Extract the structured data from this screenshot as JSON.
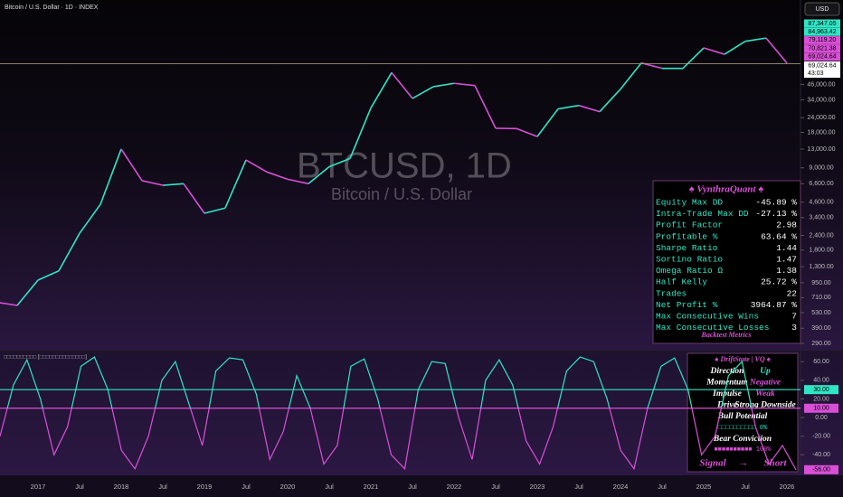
{
  "header": {
    "symbol_title": "Bitcoin / U.S. Dollar · 1D · INDEX",
    "currency": "USD",
    "watermark_symbol": "BTCUSD, 1D",
    "watermark_name": "Bitcoin / U.S. Dollar",
    "indicator_label": "□□□□□□□□□□ [□□□□□□□□□□□□□□]"
  },
  "price_labels": [
    {
      "text": "87,347.05",
      "color": "#2ee6c5"
    },
    {
      "text": "84,963.42",
      "color": "#2ee6c5"
    },
    {
      "text": "79,119.20",
      "color": "#d94fd6"
    },
    {
      "text": "70,821.38",
      "color": "#d94fd6"
    },
    {
      "text": "69,024.64",
      "color": "#d94fd6"
    }
  ],
  "last_price": {
    "value": 69024.64,
    "label": "69,024.64",
    "countdown": "43:03"
  },
  "chart_data": [
    {
      "type": "line",
      "log_scale": true,
      "categories": [
        null,
        null,
        "2017",
        null,
        "Jul",
        null,
        "2018",
        null,
        "Jul",
        null,
        "2019",
        null,
        "Jul",
        null,
        "2020",
        null,
        "Jul",
        null,
        "2021",
        null,
        "Jul",
        null,
        "2022",
        null,
        "Jul",
        null,
        "2023",
        null,
        "Jul",
        null,
        "2024",
        null,
        "Jul",
        null,
        "2025",
        null,
        "Jul",
        null,
        "2026"
      ],
      "values": [
        650,
        610,
        1000,
        1200,
        2500,
        4400,
        13000,
        7000,
        6400,
        6600,
        3700,
        4100,
        10500,
        8300,
        7200,
        6600,
        9200,
        10800,
        29000,
        58000,
        35000,
        44000,
        47000,
        45000,
        19500,
        19400,
        16600,
        28500,
        30500,
        27000,
        42000,
        70000,
        63000,
        63000,
        94000,
        83000,
        107000,
        114000,
        70000
      ],
      "colors": {
        "up": "#2ee6c5",
        "down": "#d94fd6"
      },
      "ylim": [
        252,
        240000
      ],
      "yticks": [
        {
          "value": 290,
          "label": "290.00"
        },
        {
          "value": 390,
          "label": "390.00"
        },
        {
          "value": 530,
          "label": "530.00"
        },
        {
          "value": 710,
          "label": "710.00"
        },
        {
          "value": 950,
          "label": "950.00"
        },
        {
          "value": 1300,
          "label": "1,300.00"
        },
        {
          "value": 1800,
          "label": "1,800.00"
        },
        {
          "value": 2400,
          "label": "2,400.00"
        },
        {
          "value": 3400,
          "label": "3,400.00"
        },
        {
          "value": 4600,
          "label": "4,600.00"
        },
        {
          "value": 6600,
          "label": "6,600.00"
        },
        {
          "value": 9000,
          "label": "9,000.00"
        },
        {
          "value": 13000,
          "label": "13,000.00"
        },
        {
          "value": 18000,
          "label": "18,000.00"
        },
        {
          "value": 24000,
          "label": "24,000.00"
        },
        {
          "value": 34000,
          "label": "34,000.00"
        },
        {
          "value": 46000,
          "label": "46,000.00"
        }
      ]
    },
    {
      "type": "line",
      "values": [
        -20,
        35,
        62,
        20,
        -40,
        -10,
        55,
        65,
        30,
        -35,
        -55,
        -20,
        40,
        60,
        15,
        -30,
        50,
        64,
        62,
        25,
        -45,
        -15,
        45,
        10,
        -50,
        -30,
        55,
        63,
        20,
        -40,
        -55,
        30,
        60,
        58,
        0,
        -45,
        40,
        62,
        35,
        -25,
        -50,
        -10,
        50,
        65,
        60,
        20,
        -35,
        -55,
        10,
        55,
        64,
        30,
        -40,
        -20,
        45,
        60,
        -10,
        -50,
        -30,
        -56
      ],
      "colors": {
        "above": "#2ee6c5",
        "below": "#d94fd6"
      },
      "ylim": [
        -62,
        68
      ],
      "yticks": [
        {
          "value": 60,
          "label": "60.00"
        },
        {
          "value": 40,
          "label": "40.00"
        },
        {
          "value": 20,
          "label": "20.00"
        },
        {
          "value": 0,
          "label": "0.00"
        },
        {
          "value": -20,
          "label": "-20.00"
        },
        {
          "value": -40,
          "label": "-40.00"
        }
      ],
      "hlines": [
        {
          "value": 30,
          "label": "30.00",
          "color": "#2ee6c5"
        },
        {
          "value": 10,
          "label": "10.00",
          "color": "#d94fd6"
        }
      ],
      "last": {
        "value": -56,
        "label": "-56.00"
      }
    }
  ],
  "metrics": {
    "title": "♠ VynthraQuant ♠",
    "rows": [
      [
        "Equity Max DD",
        "-45.89 %"
      ],
      [
        "Intra-Trade Max DD",
        "-27.13 %"
      ],
      [
        "Profit Factor",
        "2.98"
      ],
      [
        "Profitable %",
        "63.64 %"
      ],
      [
        "Sharpe Ratio",
        "1.44"
      ],
      [
        "Sortino Ratio",
        "1.47"
      ],
      [
        "Omega Ratio Ω",
        "1.38"
      ],
      [
        "Half Kelly",
        "25.72 %"
      ],
      [
        "Trades",
        "22"
      ],
      [
        "Net Profit %",
        "3964.87 %"
      ],
      [
        "Max Consecutive Wins",
        "7"
      ],
      [
        "Max Consecutive Losses",
        "3"
      ]
    ],
    "footer": "Backtest Metrics"
  },
  "drift": {
    "title": "♠ DriftState | VQ ♠",
    "rows": [
      [
        "Direction",
        "Up"
      ],
      [
        "Momentum",
        "Negative"
      ],
      [
        "Impulse",
        "Weak"
      ],
      [
        "Drive",
        "Strong Downside"
      ]
    ],
    "bull_label": "Bull Potential",
    "bull_bar": "□□□□□□□□□□ 0%",
    "bear_label": "Bear Conviction",
    "bear_bar": "■■■■■■■■■■ 100%",
    "signal_label": "Signal",
    "signal_arrow": "→",
    "signal_value": "Short"
  }
}
